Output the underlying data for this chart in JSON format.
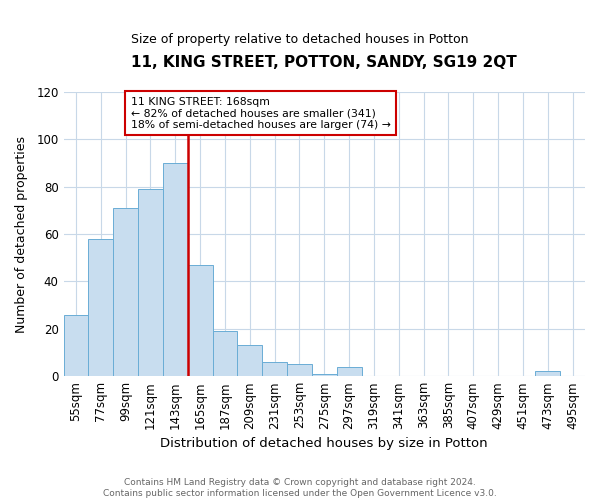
{
  "title": "11, KING STREET, POTTON, SANDY, SG19 2QT",
  "subtitle": "Size of property relative to detached houses in Potton",
  "xlabel": "Distribution of detached houses by size in Potton",
  "ylabel": "Number of detached properties",
  "bar_color": "#c8ddef",
  "bar_edge_color": "#6aadd5",
  "vline_color": "#cc0000",
  "annotation_lines": [
    "11 KING STREET: 168sqm",
    "← 82% of detached houses are smaller (341)",
    "18% of semi-detached houses are larger (74) →"
  ],
  "annotation_box_color": "white",
  "annotation_box_edge_color": "#cc0000",
  "categories": [
    "55sqm",
    "77sqm",
    "99sqm",
    "121sqm",
    "143sqm",
    "165sqm",
    "187sqm",
    "209sqm",
    "231sqm",
    "253sqm",
    "275sqm",
    "297sqm",
    "319sqm",
    "341sqm",
    "363sqm",
    "385sqm",
    "407sqm",
    "429sqm",
    "451sqm",
    "473sqm",
    "495sqm"
  ],
  "values": [
    26,
    58,
    71,
    79,
    90,
    47,
    19,
    13,
    6,
    5,
    1,
    4,
    0,
    0,
    0,
    0,
    0,
    0,
    0,
    2,
    0
  ],
  "ylim": [
    0,
    120
  ],
  "yticks": [
    0,
    20,
    40,
    60,
    80,
    100,
    120
  ],
  "footer_lines": [
    "Contains HM Land Registry data © Crown copyright and database right 2024.",
    "Contains public sector information licensed under the Open Government Licence v3.0."
  ],
  "background_color": "#ffffff",
  "grid_color": "#c8d8e8",
  "figsize": [
    6.0,
    5.0
  ],
  "dpi": 100
}
